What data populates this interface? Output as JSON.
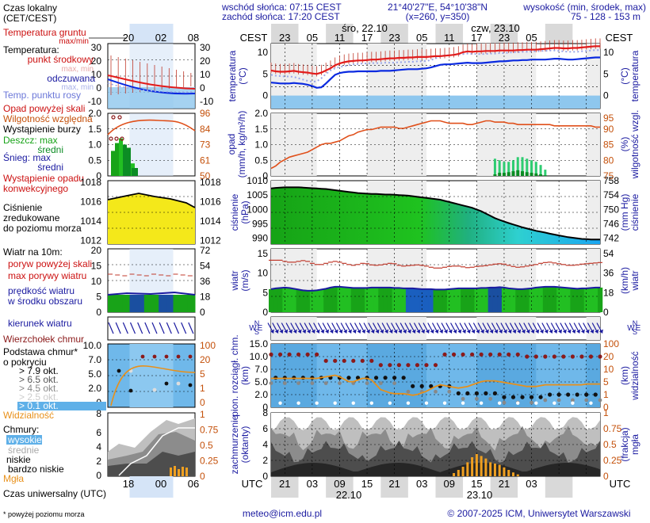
{
  "header": {
    "sunrise": "wschód słońca: 07:15 CEST",
    "sunset": "zachód słońca: 17:20 CEST",
    "coords": "21°40'27\"E, 54°10'38\"N",
    "grid": "(x=260,  y=350)",
    "elev_title": "wysokość (min, środek, max)",
    "elev_vals": "75 - 128 - 153 m",
    "tz_top": "CEST",
    "tz_bottom": "UTC",
    "day1_top": "śro, 22.10",
    "day2_top": "czw, 23.10",
    "day1_bottom": "22.10",
    "day2_bottom": "23.10",
    "top_hours": [
      "23",
      "05",
      "11",
      "17",
      "23",
      "05",
      "11",
      "17",
      "23",
      "05"
    ],
    "bottom_hours": [
      "21",
      "03",
      "09",
      "15",
      "21",
      "03",
      "09",
      "15",
      "21",
      "03"
    ]
  },
  "legend": {
    "time_title": "Czas lokalny\n(CET/CEST)",
    "time_hours": [
      "20",
      "02",
      "08"
    ],
    "utc_hours": [
      "18",
      "00",
      "06"
    ],
    "utc_title": "Czas uniwersalny (UTC)",
    "footnote": "* powyżej poziomu morza",
    "temp": {
      "ground": "Temperatura gruntu",
      "ground_mm": "max/min",
      "title": "Temperatura:",
      "mid": "punkt środkowy",
      "mid_mm": "max, min",
      "feel": "odczuwana",
      "feel_mm": "max, min",
      "dew": "Temp. punktu rosy",
      "yl": [
        "30",
        "20",
        "10",
        "0",
        "-10"
      ],
      "yr": [
        "30",
        "20",
        "10",
        "0",
        "-10"
      ]
    },
    "precip": {
      "above": "Opad powyżej skali",
      "hum": "Wilgotność względna",
      "storm": "Wystąpienie burzy",
      "rain_max": "Deszcz: max",
      "rain_mid": "średni",
      "snow_max": "Śnieg:   max",
      "snow_mid": "średni",
      "conv": "Wystąpienie opadu\nkonwekcyjnego",
      "yl": [
        "2.0",
        "1.5",
        "1.0",
        "0.5",
        "0"
      ],
      "yr": [
        "96",
        "84",
        "73",
        "61",
        "50"
      ]
    },
    "pressure": {
      "text": "Ciśnienie\nzredukowane\ndo poziomu morza",
      "yl": [
        "1018",
        "1016",
        "1014",
        "1012"
      ],
      "yr": [
        "1018",
        "1016",
        "1014",
        "1012"
      ]
    },
    "wind": {
      "title": "Wiatr na 10m:",
      "gust": "poryw powyżej skali",
      "maxgust": "max porywy wiatru",
      "speed": "prędkość wiatru\nw środku obszaru",
      "yl": [
        "20",
        "15",
        "10",
        "5",
        "0"
      ],
      "yr": [
        "72",
        "54",
        "36",
        "18",
        "0"
      ]
    },
    "direction": "kierunek wiatru",
    "clouds_top": "Wierzchołek chmur",
    "cloud_base": {
      "title": "Podstawa chmur*\no pokryciu",
      "o79": "> 7.9 okt.",
      "o65": "> 6.5 okt.",
      "o45": "> 4.5 okt.",
      "o25": "> 2.5 okt.",
      "o01": "> 0.1 okt.",
      "vis": "Widzialność",
      "yl": [
        "10.0",
        "7.0",
        "5.0",
        "2.0",
        "0"
      ],
      "yr": [
        "100",
        "20",
        "5",
        "1",
        "0"
      ],
      "bottom_tick": "8"
    },
    "clouds": {
      "title": "Chmury:",
      "high": "wysokie",
      "mid": "średnie",
      "low": "niskie",
      "vlow": "bardzo niskie",
      "fog": "Mgła",
      "yl": [
        "6",
        "4",
        "2",
        "0"
      ],
      "yr": [
        "1",
        "0.75",
        "0.5",
        "0.25",
        "0"
      ]
    }
  },
  "panels": {
    "temp": {
      "yl": "temperatura\n(°C)",
      "yr": "(°C)\ntemperatura",
      "ticks": [
        "10",
        "5",
        "0"
      ]
    },
    "precip": {
      "yl": "opad\n(mm/h, kg/m²/h)",
      "yr": "(%)\nwilgotność wzgl.",
      "ticksL": [
        "2.0",
        "1.5",
        "1.0",
        "0.5",
        "0"
      ],
      "ticksR": [
        "95",
        "90",
        "85",
        "80",
        "75"
      ]
    },
    "pressure": {
      "yl": "ciśnienie\n(hPa)",
      "yr": "(mm Hg)\nciśnienie",
      "ticksL": [
        "1010",
        "1005",
        "1000",
        "995",
        "990"
      ],
      "ticksR": [
        "758",
        "754",
        "750",
        "746",
        "742"
      ]
    },
    "wind": {
      "yl": "wiatr\n(m/s)",
      "yr": "(km/h)\nwiatr",
      "ticksL": [
        "15",
        "10",
        "5",
        "0"
      ],
      "ticksR": [
        "54",
        "36",
        "18",
        "0"
      ]
    },
    "dir": {
      "label": "WNES"
    },
    "cloudbase": {
      "yl": "pion. rozciągł. chm.\n(km)",
      "yr": "(km)\nwidzialność",
      "ticksL": [
        "15.0",
        "10.0",
        "7.0",
        "5.0",
        "2.0",
        "0"
      ],
      "ticksR": [
        "100",
        "20",
        "10",
        "5",
        "1",
        "0"
      ]
    },
    "clouds": {
      "yl": "zachmurzenie\n(oktanty)",
      "yr": "(frakcja)\nmgła",
      "ticksL": [
        "8",
        "6",
        "4",
        "2",
        "0"
      ],
      "ticksR": [
        "1",
        "0.75",
        "0.5",
        "0.25",
        "0"
      ]
    }
  },
  "footer": {
    "email": "meteo@icm.edu.pl",
    "copyright": "© 2007-2025 ICM, Uniwersytet Warszawski"
  },
  "chart_data": {
    "type": "line",
    "hours_count": 73,
    "temperature_mid": [
      5.8,
      5.6,
      5.5,
      5.5,
      5.6,
      5.7,
      5.5,
      5.4,
      5.3,
      5.1,
      5.0,
      5.3,
      5.8,
      6.3,
      7.0,
      7.4,
      7.7,
      7.9,
      8.0,
      8.1,
      8.1,
      8.2,
      8.3,
      8.3,
      8.4,
      8.5,
      8.6,
      8.6,
      8.7,
      8.7,
      8.8,
      8.8,
      8.9,
      8.9,
      8.9,
      9.0,
      9.1,
      9.1,
      9.2,
      9.3,
      9.4,
      9.6,
      10.0,
      10.2,
      10.1,
      10.2,
      10.2,
      10.3,
      10.3,
      10.3,
      10.4,
      10.4,
      10.4,
      10.4,
      10.5,
      10.5,
      10.6,
      10.6,
      10.6,
      10.7,
      10.8,
      10.9,
      11.0,
      11.0,
      10.9,
      10.9,
      11.0,
      11.0,
      11.1,
      11.2,
      11.3,
      11.4,
      11.4
    ],
    "temperature_feel": [
      3.0,
      2.9,
      2.8,
      2.8,
      2.8,
      2.9,
      2.8,
      2.7,
      2.5,
      2.2,
      1.8,
      1.9,
      2.8,
      3.8,
      4.8,
      5.2,
      5.4,
      5.5,
      5.5,
      5.6,
      5.6,
      5.6,
      5.6,
      5.6,
      5.7,
      5.7,
      5.7,
      5.8,
      5.9,
      6.0,
      6.1,
      6.1,
      6.1,
      6.2,
      6.3,
      6.5,
      6.8,
      7.1,
      7.2,
      7.2,
      7.3,
      7.4,
      7.5,
      7.6,
      7.5,
      7.5,
      7.5,
      7.6,
      7.7,
      7.8,
      7.9,
      7.9,
      8.0,
      8.1,
      8.1,
      8.2,
      8.2,
      8.3,
      8.3,
      8.3,
      8.3,
      8.4,
      8.5,
      8.5,
      8.4,
      8.3,
      8.3,
      8.4,
      8.5,
      8.6,
      8.7,
      8.8,
      8.8
    ],
    "dew_point": [
      4.8,
      4.6,
      4.5,
      4.4,
      4.4,
      4.3,
      4.0,
      3.7,
      3.4,
      3.2,
      3.3,
      4.0,
      5.0,
      5.8,
      6.3,
      6.6,
      6.8,
      7.0,
      7.2,
      7.3,
      7.4,
      7.4,
      7.5,
      7.5,
      7.5,
      7.6,
      7.6,
      7.6,
      7.7,
      7.7,
      7.8,
      7.8,
      7.9,
      7.9,
      8.0,
      8.2,
      8.6,
      9.0,
      9.3,
      9.3,
      9.4,
      9.5,
      9.6,
      9.7,
      9.6,
      9.6,
      9.6,
      9.6,
      9.7,
      9.7,
      9.8,
      9.8,
      9.9,
      10.0,
      10.0,
      10.1,
      10.1,
      10.2,
      10.2,
      10.3,
      10.3,
      10.4,
      10.4,
      10.3,
      10.2,
      10.1,
      10.1,
      10.1,
      10.2,
      10.3,
      10.4,
      10.5,
      10.5
    ],
    "humidity": [
      78.0,
      79.0,
      80.5,
      81.5,
      82.5,
      83.0,
      83.5,
      84.0,
      84.5,
      85.5,
      86.5,
      87.5,
      88.0,
      88.0,
      88.5,
      89.0,
      90.0,
      91.0,
      91.5,
      92.5,
      93.0,
      93.5,
      93.5,
      94.0,
      94.5,
      94.5,
      94.5,
      94.5,
      94.0,
      94.0,
      94.5,
      95.0,
      95.5,
      96.0,
      96.5,
      97.0,
      97.0,
      97.0,
      96.5,
      96.0,
      96.0,
      96.0,
      96.0,
      95.5,
      95.5,
      96.0,
      96.5,
      97.0,
      97.0,
      96.5,
      96.5,
      96.5,
      96.0,
      96.0,
      95.5,
      95.5,
      95.5,
      95.5,
      95.5,
      95.5,
      95.5,
      95.5,
      95.0,
      95.0,
      95.0,
      95.0,
      95.0,
      95.0,
      95.0,
      95.0,
      95.0,
      94.5,
      94.5
    ],
    "precip_max": [
      0,
      0,
      0,
      0,
      0,
      0,
      0,
      0,
      0,
      0,
      0,
      0,
      0,
      0,
      0,
      0,
      0,
      0,
      0,
      0,
      0,
      0,
      0,
      0,
      0,
      0,
      0,
      0,
      0,
      0,
      0,
      0,
      0,
      0,
      0,
      0,
      0,
      0,
      0,
      0,
      0,
      0,
      0,
      0,
      0,
      0,
      0,
      0,
      0,
      0.55,
      0.5,
      0.45,
      0.45,
      0.5,
      0.6,
      0.6,
      0.55,
      0.5,
      0.45,
      0.35,
      0.2,
      0,
      0,
      0,
      0,
      0,
      0,
      0,
      0,
      0,
      0,
      0,
      0
    ],
    "precip_mid": [
      0,
      0,
      0,
      0,
      0,
      0,
      0,
      0,
      0,
      0,
      0,
      0,
      0,
      0,
      0,
      0,
      0,
      0,
      0,
      0,
      0,
      0,
      0,
      0,
      0,
      0,
      0,
      0,
      0,
      0,
      0,
      0,
      0,
      0,
      0,
      0,
      0,
      0,
      0,
      0,
      0,
      0,
      0,
      0,
      0,
      0,
      0,
      0,
      0,
      0.05,
      0.1,
      0.1,
      0.12,
      0.15,
      0.18,
      0.15,
      0.12,
      0.1,
      0.08,
      0.05,
      0.02,
      0,
      0,
      0,
      0,
      0,
      0,
      0,
      0,
      0,
      0,
      0,
      0
    ],
    "pressure": [
      1007.3,
      1007.5,
      1007.6,
      1007.7,
      1007.7,
      1007.7,
      1007.7,
      1007.6,
      1007.5,
      1007.4,
      1007.3,
      1007.2,
      1007.1,
      1006.9,
      1006.7,
      1006.5,
      1006.3,
      1006.1,
      1005.9,
      1005.7,
      1005.6,
      1005.5,
      1005.4,
      1005.4,
      1005.3,
      1005.2,
      1005.2,
      1005.1,
      1005.0,
      1004.9,
      1004.8,
      1004.6,
      1004.4,
      1004.2,
      1004.0,
      1003.8,
      1003.6,
      1003.4,
      1003.0,
      1002.6,
      1002.2,
      1001.8,
      1001.4,
      1001.0,
      1000.6,
      1000.0,
      999.4,
      998.6,
      997.8,
      997.0,
      996.4,
      995.8,
      995.3,
      994.8,
      994.3,
      993.8,
      993.4,
      993.0,
      992.6,
      992.3,
      992.0,
      991.6,
      991.3,
      991.0,
      990.7,
      990.4,
      990.2,
      990.0,
      989.8,
      989.7,
      989.6,
      989.6,
      989.6
    ],
    "wind_speed": [
      5.9,
      6.1,
      6.2,
      6.3,
      6.2,
      6.0,
      5.8,
      5.6,
      5.5,
      5.5,
      5.6,
      5.8,
      6.0,
      6.3,
      6.5,
      6.5,
      6.4,
      6.3,
      6.2,
      6.2,
      6.2,
      6.2,
      6.3,
      6.3,
      6.3,
      6.3,
      6.3,
      6.2,
      6.2,
      6.1,
      6.1,
      6.1,
      6.0,
      5.9,
      5.9,
      5.9,
      5.8,
      5.8,
      5.8,
      5.9,
      6.0,
      6.1,
      6.1,
      6.1,
      6.1,
      6.1,
      6.2,
      6.2,
      6.3,
      6.3,
      6.4,
      6.3,
      6.1,
      6.0,
      5.9,
      5.9,
      6.0,
      6.1,
      6.3,
      6.4,
      6.5,
      6.5,
      6.5,
      6.4,
      6.3,
      6.2,
      6.1,
      6.0,
      6.1,
      6.1,
      6.2,
      6.3,
      6.3
    ],
    "wind_gust": [
      13.3,
      13.3,
      13.3,
      13.0,
      12.8,
      12.8,
      13.0,
      13.2,
      13.0,
      12.5,
      12.2,
      12.2,
      12.5,
      12.8,
      13.0,
      12.8,
      12.5,
      12.2,
      12.0,
      12.2,
      12.5,
      12.4,
      12.1,
      12.0,
      12.1,
      12.3,
      12.5,
      12.4,
      12.0,
      11.8,
      11.9,
      12.0,
      12.1,
      12.0,
      11.8,
      11.5,
      11.3,
      11.3,
      11.5,
      11.7,
      11.8,
      11.8,
      11.6,
      11.4,
      11.5,
      11.7,
      11.8,
      11.9,
      12.1,
      12.3,
      12.4,
      12.3,
      12.0,
      11.7,
      11.5,
      11.6,
      11.8,
      12.0,
      12.2,
      12.5,
      12.7,
      12.8,
      12.6,
      12.4,
      12.2,
      12.0,
      12.0,
      12.1,
      12.3,
      12.4,
      12.5,
      12.6,
      12.7
    ],
    "visibility_km": [
      3.6,
      3.6,
      3.6,
      3.6,
      3.6,
      3.6,
      3.6,
      3.6,
      3.6,
      3.6,
      3.6,
      3.7,
      3.8,
      3.9,
      4.0,
      3.8,
      3.5,
      3.2,
      3.2,
      3.4,
      3.6,
      3.6,
      3.4,
      2.8,
      2.2,
      2.0,
      1.8,
      1.7,
      1.7,
      1.7,
      1.6,
      1.5,
      1.6,
      1.8,
      2.0,
      2.3,
      2.6,
      2.8,
      2.7,
      2.6,
      2.5,
      2.4,
      2.5,
      2.6,
      2.8,
      3.0,
      3.2,
      3.3,
      3.3,
      3.3,
      3.2,
      3.1,
      3.0,
      2.9,
      2.8,
      2.7,
      2.6,
      2.6,
      2.6,
      2.7,
      2.8,
      2.8,
      2.8,
      2.8,
      2.8,
      2.8,
      2.8,
      2.8,
      2.8,
      2.9,
      2.9,
      2.9,
      2.9
    ],
    "fog_fraction": [
      0,
      0,
      0,
      0,
      0,
      0,
      0,
      0,
      0,
      0,
      0,
      0,
      0,
      0,
      0,
      0,
      0,
      0,
      0,
      0,
      0,
      0,
      0,
      0,
      0,
      0,
      0,
      0,
      0,
      0,
      0,
      0,
      0,
      0,
      0,
      0,
      0,
      0,
      0,
      0,
      0.05,
      0.1,
      0.15,
      0.22,
      0.3,
      0.35,
      0.32,
      0.28,
      0.22,
      0.2,
      0.18,
      0.14,
      0.1,
      0.06,
      0.03,
      0,
      0,
      0,
      0,
      0,
      0,
      0,
      0,
      0,
      0,
      0,
      0,
      0,
      0,
      0,
      0,
      0,
      0
    ]
  }
}
